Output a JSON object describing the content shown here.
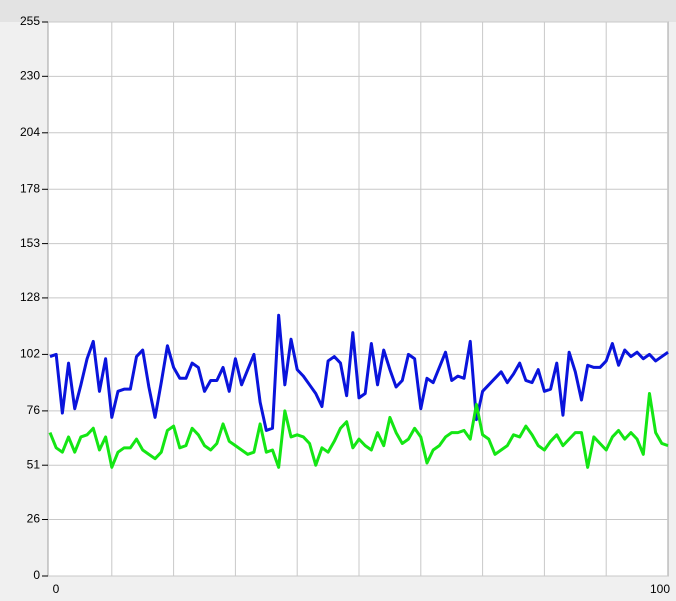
{
  "chart_data": {
    "type": "line",
    "x": [
      0,
      1,
      2,
      3,
      4,
      5,
      6,
      7,
      8,
      9,
      10,
      11,
      12,
      13,
      14,
      15,
      16,
      17,
      18,
      19,
      20,
      21,
      22,
      23,
      24,
      25,
      26,
      27,
      28,
      29,
      30,
      31,
      32,
      33,
      34,
      35,
      36,
      37,
      38,
      39,
      40,
      41,
      42,
      43,
      44,
      45,
      46,
      47,
      48,
      49,
      50,
      51,
      52,
      53,
      54,
      55,
      56,
      57,
      58,
      59,
      60,
      61,
      62,
      63,
      64,
      65,
      66,
      67,
      68,
      69,
      70,
      71,
      72,
      73,
      74,
      75,
      76,
      77,
      78,
      79,
      80,
      81,
      82,
      83,
      84,
      85,
      86,
      87,
      88,
      89,
      90,
      91,
      92,
      93,
      94,
      95,
      96,
      97,
      98,
      99,
      100
    ],
    "series": [
      {
        "color": "#0a14dc",
        "values": [
          101,
          102,
          75,
          98,
          77,
          88,
          100,
          108,
          85,
          100,
          73,
          85,
          86,
          86,
          101,
          104,
          87,
          73,
          89,
          106,
          96,
          91,
          91,
          98,
          96,
          85,
          90,
          90,
          96,
          85,
          100,
          88,
          95,
          102,
          80,
          67,
          68,
          120,
          88,
          109,
          95,
          92,
          88,
          84,
          78,
          99,
          101,
          98,
          83,
          112,
          82,
          84,
          107,
          88,
          104,
          95,
          87,
          90,
          102,
          100,
          77,
          91,
          89,
          96,
          103,
          90,
          92,
          91,
          108,
          72,
          85,
          88,
          91,
          94,
          89,
          93,
          98,
          90,
          89,
          95,
          85,
          86,
          98,
          74,
          103,
          94,
          81,
          97,
          96,
          96,
          99,
          107,
          97,
          104,
          101,
          103,
          100,
          102,
          99,
          101,
          103
        ]
      },
      {
        "color": "#14e614",
        "values": [
          66,
          59,
          57,
          64,
          57,
          64,
          65,
          68,
          58,
          64,
          50,
          57,
          59,
          59,
          63,
          58,
          56,
          54,
          57,
          67,
          69,
          59,
          60,
          68,
          65,
          60,
          58,
          61,
          70,
          62,
          60,
          58,
          56,
          57,
          70,
          57,
          58,
          50,
          76,
          64,
          65,
          64,
          61,
          51,
          59,
          57,
          62,
          68,
          71,
          59,
          63,
          60,
          58,
          66,
          60,
          73,
          66,
          61,
          63,
          68,
          64,
          52,
          58,
          60,
          64,
          66,
          66,
          67,
          63,
          79,
          65,
          63,
          56,
          58,
          60,
          65,
          64,
          69,
          65,
          60,
          58,
          62,
          65,
          60,
          63,
          66,
          66,
          50,
          64,
          61,
          58,
          64,
          67,
          63,
          66,
          63,
          56,
          84,
          66,
          61,
          60
        ]
      }
    ],
    "xlim": [
      0,
      100
    ],
    "xticks": [
      0,
      100
    ],
    "xgrid": [
      10,
      20,
      30,
      40,
      50,
      60,
      70,
      80,
      90
    ],
    "ylim": [
      0,
      255
    ],
    "yticks": [
      0,
      26,
      51,
      76,
      102,
      128,
      153,
      178,
      204,
      230,
      255
    ],
    "grid": true
  }
}
